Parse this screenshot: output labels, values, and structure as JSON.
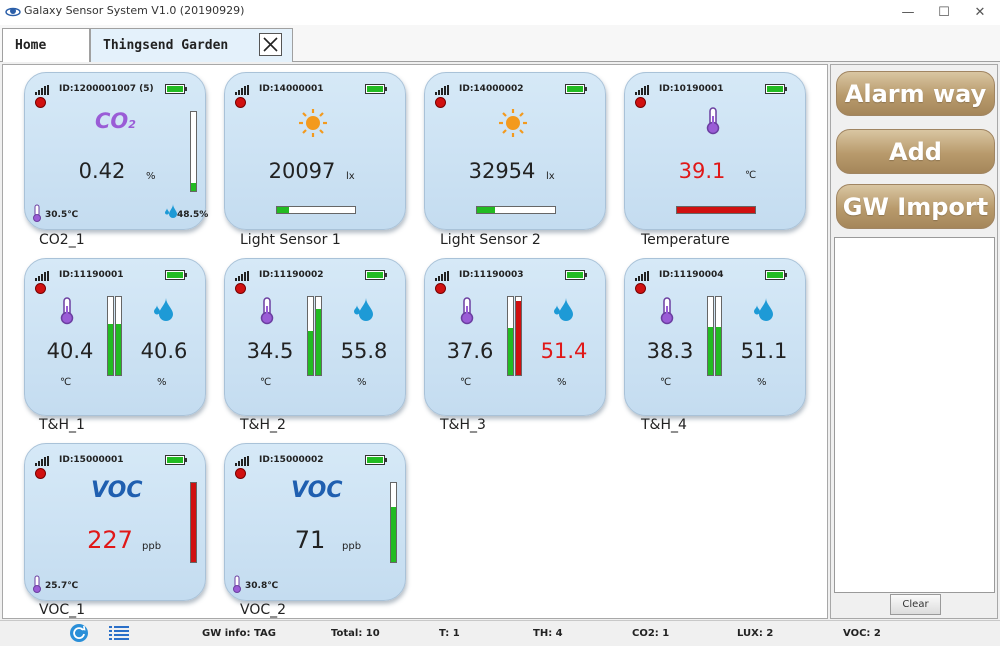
{
  "window": {
    "title": "Galaxy Sensor System V1.0   (20190929)",
    "minimize": "—",
    "maximize": "☐",
    "close": "✕"
  },
  "tabs": [
    {
      "label": "Home"
    },
    {
      "label": "Thingsend Garden"
    }
  ],
  "sidebar": {
    "alarm_label": "Alarm way",
    "add_label": "Add",
    "import_label": "GW Import",
    "clear_label": "Clear"
  },
  "colors": {
    "ok_green": "#22bb22",
    "alarm_red": "#d01010",
    "card_bg": "#d6e9f7",
    "button_brown": "#b89a6c"
  },
  "sensors": [
    {
      "caption": "CO2_1",
      "id": "ID:1200001007  (5)",
      "value": "0.42",
      "unit": "%",
      "temp": "30.5℃",
      "humidity": "48.5%",
      "level": 0.1,
      "bar_color": "#22bb22"
    },
    {
      "caption": "Light Sensor 1",
      "id": "ID:14000001",
      "value": "20097",
      "unit": "lx",
      "level": 0.15,
      "bar_color": "#22bb22"
    },
    {
      "caption": "Light Sensor 2",
      "id": "ID:14000002",
      "value": "32954",
      "unit": "lx",
      "level": 0.23,
      "bar_color": "#22bb22"
    },
    {
      "caption": "Temperature",
      "id": "ID:10190001",
      "value": "39.1",
      "unit": "℃",
      "level": 1.0,
      "bar_color": "#d01010"
    },
    {
      "caption": "T&H_1",
      "id": "ID:11190001",
      "temp": "40.4",
      "temp_unit": "℃",
      "hum": "40.6",
      "hum_unit": "%",
      "temp_level": 0.65,
      "hum_level": 0.65,
      "temp_color": "#22bb22",
      "hum_color": "#22bb22"
    },
    {
      "caption": "T&H_2",
      "id": "ID:11190002",
      "temp": "34.5",
      "temp_unit": "℃",
      "hum": "55.8",
      "hum_unit": "%",
      "temp_level": 0.57,
      "hum_level": 0.85,
      "temp_color": "#22bb22",
      "hum_color": "#22bb22"
    },
    {
      "caption": "T&H_3",
      "id": "ID:11190003",
      "temp": "37.6",
      "temp_unit": "℃",
      "hum": "51.4",
      "hum_unit": "%",
      "temp_level": 0.6,
      "hum_level": 0.95,
      "temp_color": "#22bb22",
      "hum_color": "#d01010"
    },
    {
      "caption": "T&H_4",
      "id": "ID:11190004",
      "temp": "38.3",
      "temp_unit": "℃",
      "hum": "51.1",
      "hum_unit": "%",
      "temp_level": 0.62,
      "hum_level": 0.62,
      "temp_color": "#22bb22",
      "hum_color": "#22bb22"
    },
    {
      "caption": "VOC_1",
      "id": "ID:15000001",
      "logo": "VOC",
      "value": "227",
      "unit": "ppb",
      "temp": "25.7℃",
      "level": 1.0,
      "bar_color": "#d01010"
    },
    {
      "caption": "VOC_2",
      "id": "ID:15000002",
      "logo": "VOC",
      "value": "71",
      "unit": "ppb",
      "temp": "30.8℃",
      "level": 0.7,
      "bar_color": "#22bb22"
    }
  ],
  "status": {
    "gw_info": "GW info: TAG",
    "total": "Total: 10",
    "t": "T:  1",
    "th": "TH:  4",
    "co2": "CO2:  1",
    "lux": "LUX:  2",
    "voc": "VOC:  2"
  }
}
